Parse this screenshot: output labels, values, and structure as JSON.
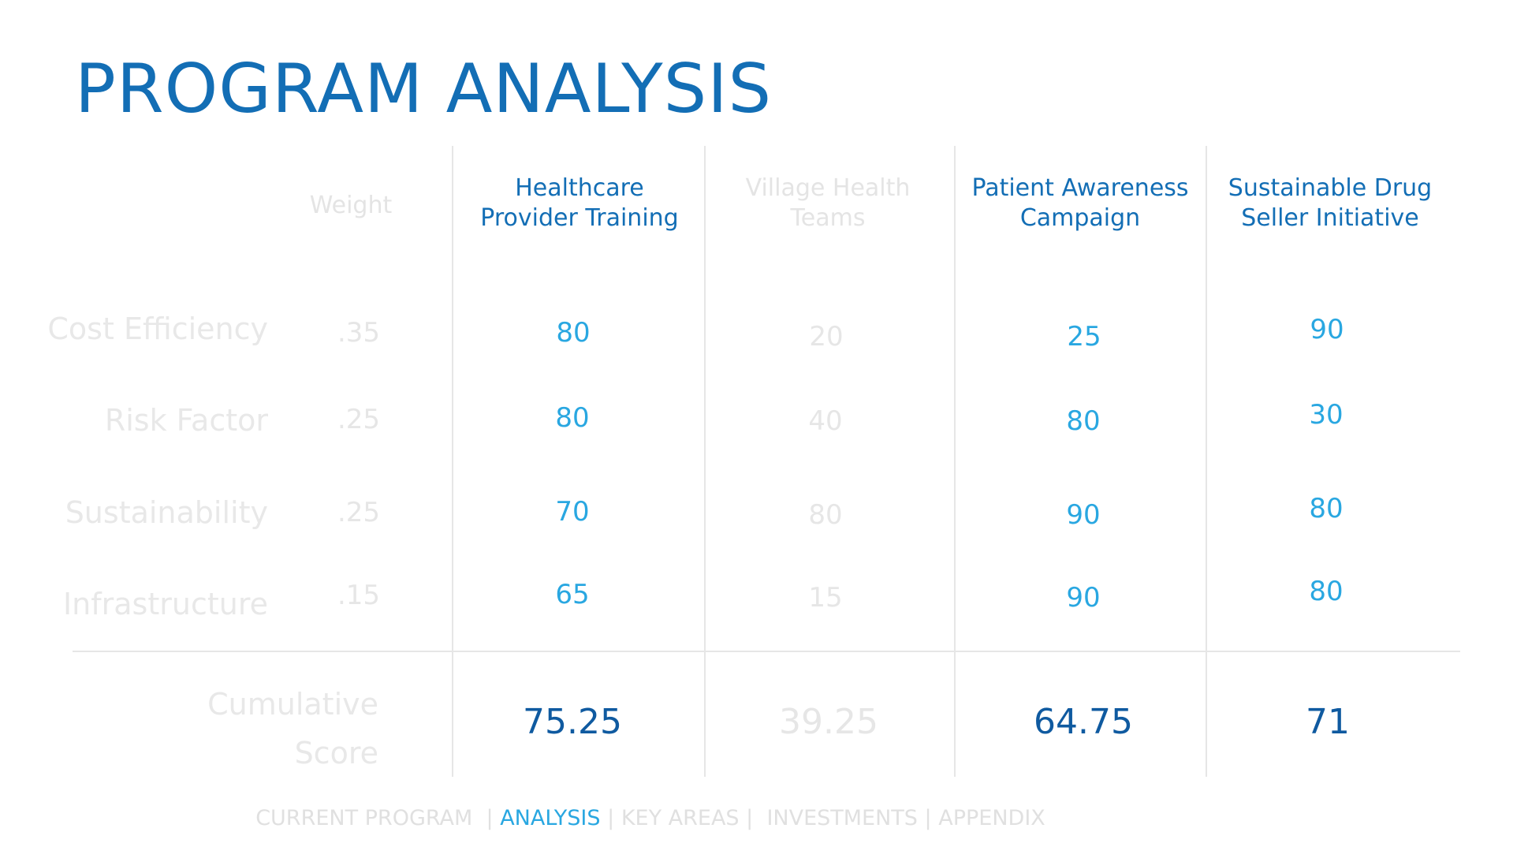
{
  "title": "PROGRAM ANALYSIS",
  "weight_header": "Weight",
  "columns": [
    {
      "line1": "Healthcare",
      "line2": "Provider Training"
    },
    {
      "line1": "Village Health",
      "line2": "Teams"
    },
    {
      "line1": "Patient Awareness",
      "line2": "Campaign"
    },
    {
      "line1": "Sustainable Drug",
      "line2": "Seller Initiative"
    }
  ],
  "rows": [
    {
      "label": "Cost Efficiency",
      "weight": ".35",
      "values": [
        "80",
        "20",
        "25",
        "90"
      ]
    },
    {
      "label": "Risk Factor",
      "weight": ".25",
      "values": [
        "80",
        "40",
        "80",
        "30"
      ]
    },
    {
      "label": "Sustainability",
      "weight": ".25",
      "values": [
        "70",
        "80",
        "90",
        "80"
      ]
    },
    {
      "label": "Infrastructure",
      "weight": ".15",
      "values": [
        "65",
        "15",
        "90",
        "80"
      ]
    }
  ],
  "cumulative": {
    "label_line1": "Cumulative",
    "label_line2": "Score",
    "scores": [
      "75.25",
      "39.25",
      "64.75",
      "71"
    ]
  },
  "nav": {
    "current_program": "CURRENT PROGRAM",
    "sep1": "|",
    "analysis": "ANALYSIS",
    "sep2": "|",
    "key_areas": "KEY AREAS",
    "sep3": "|",
    "investments": "INVESTMENTS",
    "sep4": "|",
    "appendix": "APPENDIX"
  },
  "colors": {
    "title": "#136eb5",
    "header_active": "#136eb5",
    "value_active": "#29a7e1",
    "score_active": "#0f5aa0",
    "faded": "#e6e6e6"
  }
}
